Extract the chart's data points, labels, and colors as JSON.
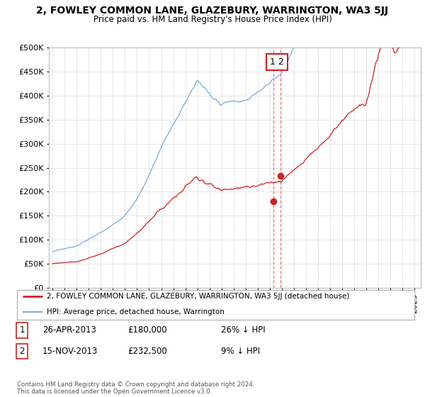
{
  "title": "2, FOWLEY COMMON LANE, GLAZEBURY, WARRINGTON, WA3 5JJ",
  "subtitle": "Price paid vs. HM Land Registry's House Price Index (HPI)",
  "hpi_color": "#7aaadd",
  "price_color": "#cc2222",
  "ylim": [
    0,
    500000
  ],
  "yticks": [
    0,
    50000,
    100000,
    150000,
    200000,
    250000,
    300000,
    350000,
    400000,
    450000,
    500000
  ],
  "sales": [
    {
      "date_num": 2013.32,
      "price": 180000,
      "label": "1"
    },
    {
      "date_num": 2013.88,
      "price": 232500,
      "label": "2"
    }
  ],
  "legend_line1": "2, FOWLEY COMMON LANE, GLAZEBURY, WARRINGTON, WA3 5JJ (detached house)",
  "legend_line2": "HPI: Average price, detached house, Warrington",
  "table_rows": [
    {
      "num": "1",
      "date": "26-APR-2013",
      "price": "£180,000",
      "vs_hpi": "26% ↓ HPI"
    },
    {
      "num": "2",
      "date": "15-NOV-2013",
      "price": "£232,500",
      "vs_hpi": "9% ↓ HPI"
    }
  ],
  "footnote": "Contains HM Land Registry data © Crown copyright and database right 2024.\nThis data is licensed under the Open Government Licence v3.0.",
  "bg_color": "#ffffff",
  "grid_color": "#dddddd"
}
